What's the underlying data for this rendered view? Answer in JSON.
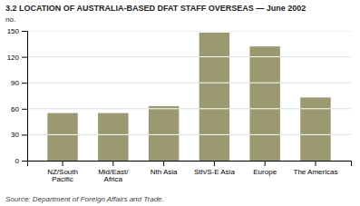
{
  "chart_data": {
    "type": "bar",
    "title": "3.2 LOCATION OF AUSTRALIA-BASED DFAT STAFF OVERSEAS — June 2002",
    "ylabel": "no.",
    "annotations": [
      "Source: Department of Foreign Affairs and Trade."
    ],
    "categories": [
      "NZ/South\nPacific",
      "Mid/East/\nAfrica",
      "Nth Asia",
      "Sth/S-E Asia",
      "Europe",
      "The Americas"
    ],
    "values": [
      55,
      55,
      63,
      148,
      132,
      73
    ],
    "color": "#9a9970",
    "ylim": [
      0,
      150
    ],
    "yticks": [
      0,
      30,
      60,
      90,
      120,
      150
    ],
    "grid": true
  }
}
